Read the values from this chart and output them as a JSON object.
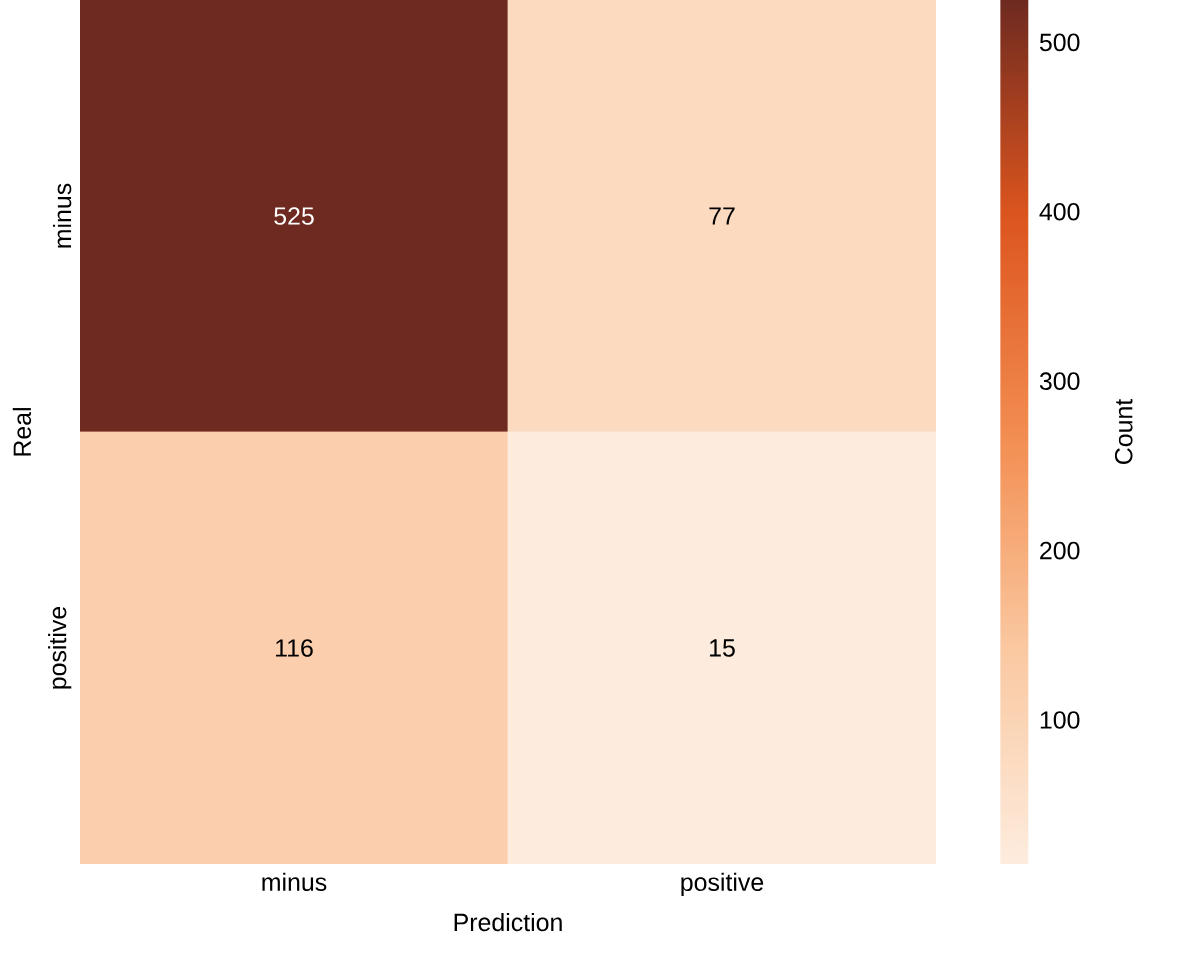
{
  "chart_data": {
    "type": "heatmap",
    "xlabel": "Prediction",
    "ylabel": "Real",
    "clabel": "Count",
    "categories": [
      "minus",
      "positive"
    ],
    "y_categories": [
      "minus",
      "positive"
    ],
    "cells": [
      [
        525,
        77
      ],
      [
        116,
        15
      ]
    ],
    "data_labels": true,
    "clim": [
      15,
      525
    ],
    "cticks": [
      100,
      200,
      300,
      400,
      500
    ]
  }
}
